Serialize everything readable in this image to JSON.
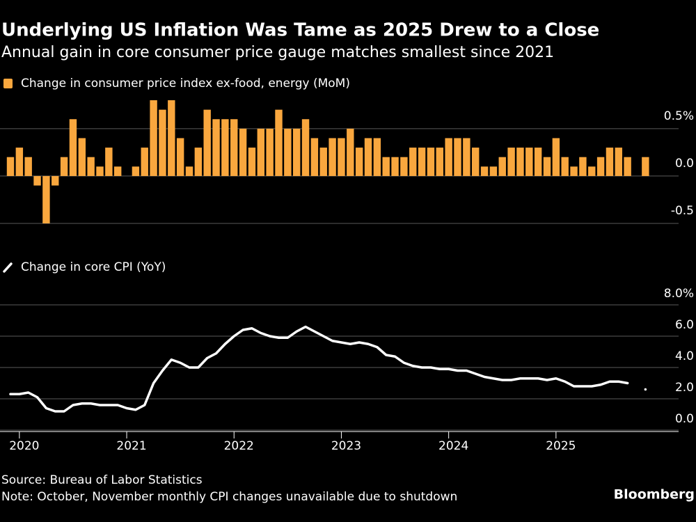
{
  "title": "Underlying US Inflation Was Tame as 2025 Drew to a Close",
  "subtitle": "Annual gain in core consumer price gauge matches smallest since 2021",
  "source": "Source: Bureau of Labor Statistics",
  "note": "Note: October, November monthly CPI changes unavailable due to shutdown",
  "logo": "Bloomberg",
  "chart_data": [
    {
      "type": "bar",
      "series": [
        {
          "name": "Change in consumer price index ex-food, energy (MoM)",
          "color": "#f9a73e",
          "values": [
            0.2,
            0.3,
            0.2,
            -0.1,
            -0.5,
            -0.1,
            0.2,
            0.6,
            0.4,
            0.2,
            0.1,
            0.3,
            0.1,
            0.0,
            0.1,
            0.3,
            0.8,
            0.7,
            0.8,
            0.4,
            0.1,
            0.3,
            0.7,
            0.6,
            0.6,
            0.6,
            0.5,
            0.3,
            0.5,
            0.5,
            0.7,
            0.5,
            0.5,
            0.6,
            0.4,
            0.3,
            0.4,
            0.4,
            0.5,
            0.3,
            0.4,
            0.4,
            0.2,
            0.2,
            0.2,
            0.3,
            0.3,
            0.3,
            0.3,
            0.4,
            0.4,
            0.4,
            0.3,
            0.1,
            0.1,
            0.2,
            0.3,
            0.3,
            0.3,
            0.3,
            0.2,
            0.4,
            0.2,
            0.1,
            0.2,
            0.1,
            0.2,
            0.3,
            0.3,
            0.2,
            null,
            0.2
          ]
        }
      ],
      "ylim": [
        -0.5,
        0.8
      ],
      "yticks": [
        {
          "value": 0.5,
          "label": "0.5%"
        },
        {
          "value": 0,
          "label": "0.0"
        },
        -0.5
      ],
      "grid": true
    },
    {
      "type": "line",
      "categories": [
        null,
        "2020",
        null,
        null,
        null,
        null,
        null,
        null,
        null,
        null,
        null,
        null,
        null,
        "2021",
        null,
        null,
        null,
        null,
        null,
        null,
        null,
        null,
        null,
        null,
        null,
        "2022",
        null,
        null,
        null,
        null,
        null,
        null,
        null,
        null,
        null,
        null,
        null,
        "2023",
        null,
        null,
        null,
        null,
        null,
        null,
        null,
        null,
        null,
        null,
        null,
        "2024",
        null,
        null,
        null,
        null,
        null,
        null,
        null,
        null,
        null,
        null,
        null,
        "2025",
        null,
        null,
        null,
        null,
        null,
        null,
        null,
        null,
        null,
        null
      ],
      "series": [
        {
          "name": "Change in core CPI (YoY)",
          "color": "#ffffff",
          "values": [
            2.3,
            2.3,
            2.4,
            2.1,
            1.4,
            1.2,
            1.2,
            1.6,
            1.7,
            1.7,
            1.6,
            1.6,
            1.6,
            1.4,
            1.3,
            1.6,
            3.0,
            3.8,
            4.5,
            4.3,
            4.0,
            4.0,
            4.6,
            4.9,
            5.5,
            6.0,
            6.4,
            6.5,
            6.2,
            6.0,
            5.9,
            5.9,
            6.3,
            6.6,
            6.3,
            6.0,
            5.7,
            5.6,
            5.5,
            5.6,
            5.5,
            5.3,
            4.8,
            4.7,
            4.3,
            4.1,
            4.0,
            4.0,
            3.9,
            3.9,
            3.8,
            3.8,
            3.6,
            3.4,
            3.3,
            3.2,
            3.2,
            3.3,
            3.3,
            3.3,
            3.2,
            3.3,
            3.1,
            2.8,
            2.8,
            2.8,
            2.9,
            3.1,
            3.1,
            3.0,
            null,
            2.6
          ]
        }
      ],
      "ylim": [
        0,
        8
      ],
      "yticks": [
        {
          "value": 8,
          "label": "8.0%"
        },
        {
          "value": 6,
          "label": "6.0"
        },
        {
          "value": 4,
          "label": "4.0"
        },
        {
          "value": 2,
          "label": "2.0"
        },
        {
          "value": 0,
          "label": "0.0"
        }
      ],
      "grid": true
    }
  ]
}
